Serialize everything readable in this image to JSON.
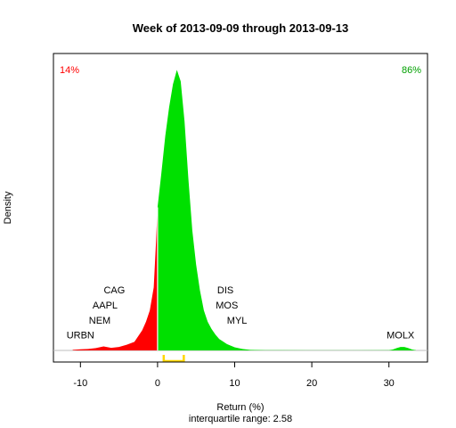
{
  "chart_data": {
    "type": "area",
    "title": "Week of 2013-09-09 through 2013-09-13",
    "xlabel": "Return (%)",
    "subtitle": "interquartile range: 2.58",
    "ylabel": "Density",
    "xlim": [
      -13.5,
      35
    ],
    "ylim": [
      0,
      1
    ],
    "x_ticks": [
      -10,
      0,
      10,
      20,
      30
    ],
    "x_tick_labels": [
      "-10",
      "0",
      "10",
      "20",
      "30"
    ],
    "split_at": 0,
    "colors": {
      "negative": "#ff0000",
      "positive": "#00e000",
      "iqr": "#ffd700",
      "zero_line": "#ffffff",
      "baseline": "#bebebe"
    },
    "negative_share_label": "14%",
    "positive_share_label": "86%",
    "iqr": {
      "low": 0.8,
      "high": 3.4
    },
    "density": {
      "x": [
        -11,
        -10,
        -9,
        -8,
        -7,
        -6,
        -5,
        -4,
        -3,
        -2,
        -1.5,
        -1,
        -0.5,
        -0.2,
        0,
        0.5,
        1,
        1.5,
        2,
        2.5,
        3,
        3.5,
        4,
        4.5,
        5,
        5.5,
        6,
        6.5,
        7,
        7.5,
        8,
        9,
        10,
        11,
        12,
        14,
        16,
        20,
        25,
        30,
        30.5,
        31,
        31.5,
        32,
        32.5,
        33,
        33.5
      ],
      "y": [
        0.002,
        0.004,
        0.005,
        0.008,
        0.014,
        0.009,
        0.012,
        0.02,
        0.03,
        0.07,
        0.1,
        0.14,
        0.22,
        0.38,
        0.5,
        0.62,
        0.75,
        0.85,
        0.93,
        0.98,
        0.94,
        0.8,
        0.6,
        0.42,
        0.3,
        0.21,
        0.14,
        0.1,
        0.075,
        0.055,
        0.04,
        0.022,
        0.011,
        0.005,
        0.002,
        0.001,
        0.0005,
        0.0002,
        0.0002,
        0.001,
        0.003,
        0.008,
        0.012,
        0.012,
        0.008,
        0.003,
        0.001
      ]
    },
    "annotations": [
      {
        "text": "CAG",
        "x": -5.6,
        "y": 0.2
      },
      {
        "text": "AAPL",
        "x": -6.8,
        "y": 0.147
      },
      {
        "text": "NEM",
        "x": -7.5,
        "y": 0.094
      },
      {
        "text": "URBN",
        "x": -10.0,
        "y": 0.042
      },
      {
        "text": "DIS",
        "x": 8.8,
        "y": 0.2
      },
      {
        "text": "MOS",
        "x": 9.0,
        "y": 0.147
      },
      {
        "text": "MYL",
        "x": 10.3,
        "y": 0.094
      },
      {
        "text": "MOLX",
        "x": 31.5,
        "y": 0.042
      }
    ]
  }
}
